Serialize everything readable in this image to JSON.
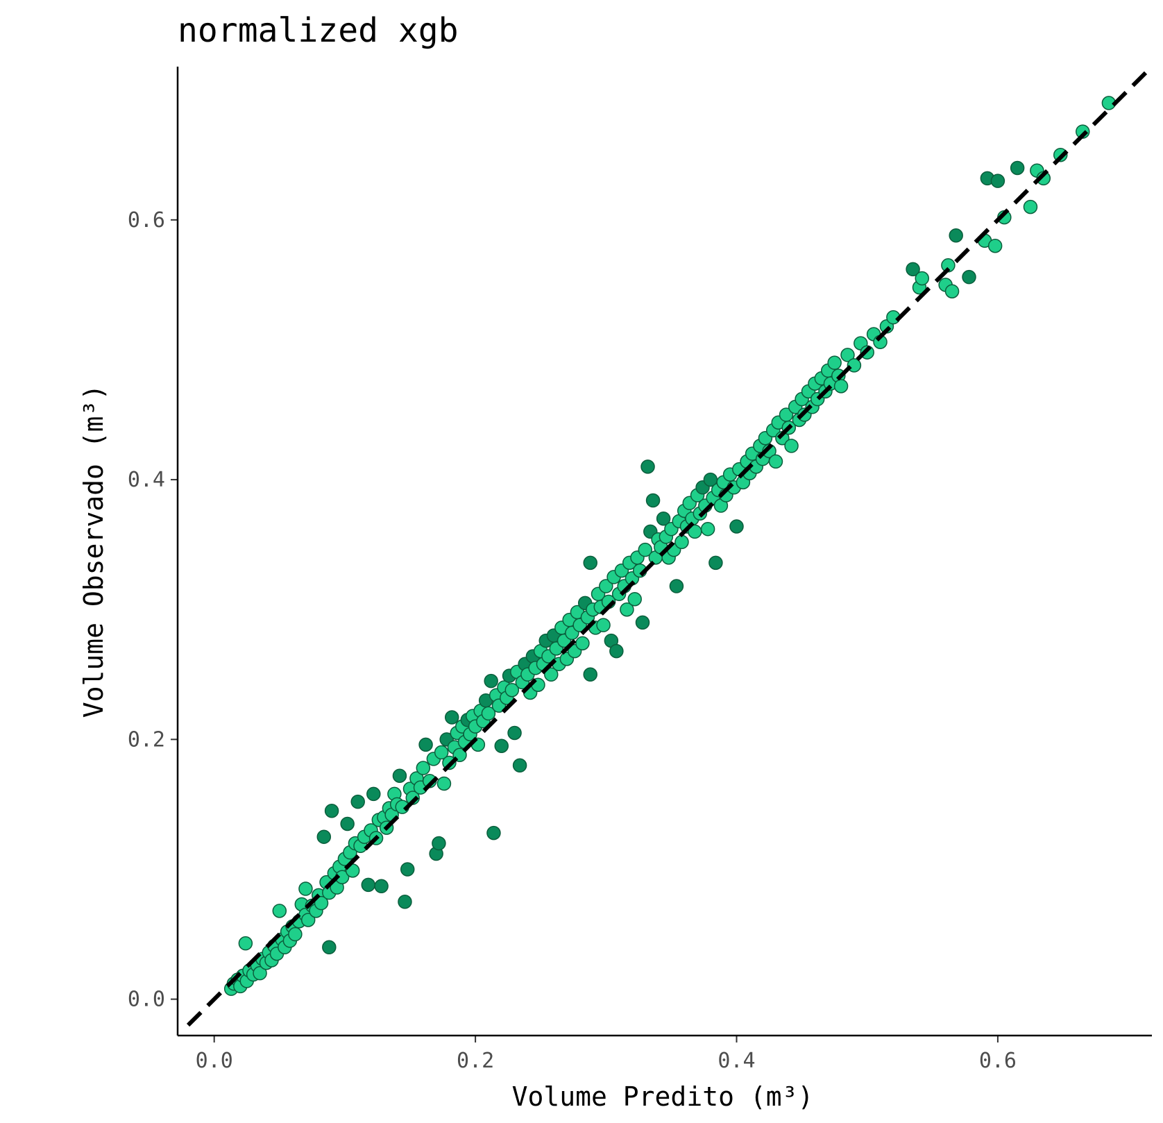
{
  "chart_data": {
    "type": "scatter",
    "title": "normalized xgb",
    "xlabel": "Volume Predito (m³)",
    "ylabel": "Volume Observado (m³)",
    "xlim": [
      -0.028,
      0.718
    ],
    "ylim": [
      -0.028,
      0.718
    ],
    "x_ticks": [
      0.0,
      0.2,
      0.4,
      0.6
    ],
    "y_ticks": [
      0.0,
      0.2,
      0.4,
      0.6
    ],
    "x_tick_labels": [
      "0.0",
      "0.2",
      "0.4",
      "0.6"
    ],
    "y_tick_labels": [
      "0.0",
      "0.2",
      "0.4",
      "0.6"
    ],
    "grid": false,
    "reference_line": {
      "slope": 1,
      "intercept": 0,
      "style": "dashed",
      "color": "#000000"
    },
    "point_fill": "#1fcf8a",
    "point_fill_dark": "#0a8a5a",
    "point_stroke": "#0b5e3c",
    "series": [
      {
        "points": [
          [
            0.013,
            0.008
          ],
          [
            0.015,
            0.012
          ],
          [
            0.018,
            0.015
          ],
          [
            0.02,
            0.01
          ],
          [
            0.022,
            0.018
          ],
          [
            0.025,
            0.014
          ],
          [
            0.027,
            0.022
          ],
          [
            0.03,
            0.019
          ],
          [
            0.024,
            0.043
          ],
          [
            0.033,
            0.026
          ],
          [
            0.035,
            0.02
          ],
          [
            0.037,
            0.031
          ],
          [
            0.04,
            0.028
          ],
          [
            0.042,
            0.036
          ],
          [
            0.044,
            0.03
          ],
          [
            0.046,
            0.041
          ],
          [
            0.048,
            0.035
          ],
          [
            0.05,
            0.068
          ],
          [
            0.052,
            0.046
          ],
          [
            0.054,
            0.04
          ],
          [
            0.056,
            0.052
          ],
          [
            0.058,
            0.045
          ],
          [
            0.06,
            0.056
          ],
          [
            0.062,
            0.05
          ],
          [
            0.065,
            0.06
          ],
          [
            0.067,
            0.073
          ],
          [
            0.07,
            0.065
          ],
          [
            0.072,
            0.061
          ],
          [
            0.07,
            0.085
          ],
          [
            0.075,
            0.072
          ],
          [
            0.078,
            0.068
          ],
          [
            0.08,
            0.08
          ],
          [
            0.082,
            0.074
          ],
          [
            0.084,
            0.125
          ],
          [
            0.086,
            0.09
          ],
          [
            0.088,
            0.082
          ],
          [
            0.088,
            0.04
          ],
          [
            0.09,
            0.145
          ],
          [
            0.092,
            0.097
          ],
          [
            0.094,
            0.086
          ],
          [
            0.096,
            0.102
          ],
          [
            0.098,
            0.094
          ],
          [
            0.1,
            0.108
          ],
          [
            0.102,
            0.135
          ],
          [
            0.104,
            0.113
          ],
          [
            0.106,
            0.099
          ],
          [
            0.108,
            0.12
          ],
          [
            0.11,
            0.152
          ],
          [
            0.112,
            0.118
          ],
          [
            0.115,
            0.125
          ],
          [
            0.118,
            0.088
          ],
          [
            0.12,
            0.13
          ],
          [
            0.122,
            0.158
          ],
          [
            0.124,
            0.124
          ],
          [
            0.126,
            0.138
          ],
          [
            0.128,
            0.087
          ],
          [
            0.13,
            0.14
          ],
          [
            0.132,
            0.132
          ],
          [
            0.134,
            0.147
          ],
          [
            0.136,
            0.142
          ],
          [
            0.138,
            0.158
          ],
          [
            0.14,
            0.15
          ],
          [
            0.142,
            0.172
          ],
          [
            0.144,
            0.148
          ],
          [
            0.146,
            0.075
          ],
          [
            0.148,
            0.1
          ],
          [
            0.15,
            0.162
          ],
          [
            0.152,
            0.155
          ],
          [
            0.155,
            0.17
          ],
          [
            0.158,
            0.163
          ],
          [
            0.16,
            0.178
          ],
          [
            0.162,
            0.196
          ],
          [
            0.165,
            0.168
          ],
          [
            0.168,
            0.185
          ],
          [
            0.17,
            0.112
          ],
          [
            0.172,
            0.12
          ],
          [
            0.174,
            0.19
          ],
          [
            0.176,
            0.166
          ],
          [
            0.178,
            0.2
          ],
          [
            0.18,
            0.182
          ],
          [
            0.182,
            0.217
          ],
          [
            0.184,
            0.194
          ],
          [
            0.186,
            0.205
          ],
          [
            0.188,
            0.188
          ],
          [
            0.19,
            0.21
          ],
          [
            0.192,
            0.198
          ],
          [
            0.194,
            0.215
          ],
          [
            0.196,
            0.204
          ],
          [
            0.198,
            0.218
          ],
          [
            0.2,
            0.21
          ],
          [
            0.202,
            0.196
          ],
          [
            0.204,
            0.222
          ],
          [
            0.206,
            0.214
          ],
          [
            0.208,
            0.23
          ],
          [
            0.21,
            0.22
          ],
          [
            0.212,
            0.245
          ],
          [
            0.214,
            0.128
          ],
          [
            0.216,
            0.234
          ],
          [
            0.218,
            0.226
          ],
          [
            0.22,
            0.195
          ],
          [
            0.222,
            0.24
          ],
          [
            0.224,
            0.232
          ],
          [
            0.226,
            0.249
          ],
          [
            0.228,
            0.238
          ],
          [
            0.23,
            0.205
          ],
          [
            0.232,
            0.252
          ],
          [
            0.234,
            0.18
          ],
          [
            0.236,
            0.244
          ],
          [
            0.238,
            0.258
          ],
          [
            0.24,
            0.25
          ],
          [
            0.242,
            0.236
          ],
          [
            0.244,
            0.264
          ],
          [
            0.246,
            0.255
          ],
          [
            0.248,
            0.242
          ],
          [
            0.25,
            0.268
          ],
          [
            0.252,
            0.258
          ],
          [
            0.254,
            0.276
          ],
          [
            0.256,
            0.264
          ],
          [
            0.258,
            0.25
          ],
          [
            0.26,
            0.28
          ],
          [
            0.262,
            0.27
          ],
          [
            0.264,
            0.258
          ],
          [
            0.266,
            0.286
          ],
          [
            0.268,
            0.276
          ],
          [
            0.27,
            0.262
          ],
          [
            0.272,
            0.292
          ],
          [
            0.274,
            0.282
          ],
          [
            0.276,
            0.268
          ],
          [
            0.278,
            0.298
          ],
          [
            0.28,
            0.288
          ],
          [
            0.282,
            0.274
          ],
          [
            0.284,
            0.305
          ],
          [
            0.286,
            0.294
          ],
          [
            0.288,
            0.25
          ],
          [
            0.288,
            0.336
          ],
          [
            0.29,
            0.3
          ],
          [
            0.292,
            0.286
          ],
          [
            0.294,
            0.312
          ],
          [
            0.296,
            0.302
          ],
          [
            0.298,
            0.288
          ],
          [
            0.3,
            0.318
          ],
          [
            0.302,
            0.306
          ],
          [
            0.304,
            0.276
          ],
          [
            0.306,
            0.325
          ],
          [
            0.308,
            0.268
          ],
          [
            0.31,
            0.312
          ],
          [
            0.312,
            0.33
          ],
          [
            0.314,
            0.318
          ],
          [
            0.316,
            0.3
          ],
          [
            0.318,
            0.336
          ],
          [
            0.32,
            0.324
          ],
          [
            0.322,
            0.308
          ],
          [
            0.324,
            0.34
          ],
          [
            0.326,
            0.33
          ],
          [
            0.328,
            0.29
          ],
          [
            0.33,
            0.346
          ],
          [
            0.332,
            0.41
          ],
          [
            0.334,
            0.36
          ],
          [
            0.336,
            0.384
          ],
          [
            0.338,
            0.34
          ],
          [
            0.34,
            0.354
          ],
          [
            0.342,
            0.348
          ],
          [
            0.344,
            0.37
          ],
          [
            0.346,
            0.356
          ],
          [
            0.348,
            0.34
          ],
          [
            0.35,
            0.362
          ],
          [
            0.352,
            0.346
          ],
          [
            0.354,
            0.318
          ],
          [
            0.356,
            0.368
          ],
          [
            0.358,
            0.352
          ],
          [
            0.36,
            0.376
          ],
          [
            0.362,
            0.364
          ],
          [
            0.364,
            0.382
          ],
          [
            0.366,
            0.37
          ],
          [
            0.368,
            0.36
          ],
          [
            0.37,
            0.388
          ],
          [
            0.372,
            0.374
          ],
          [
            0.374,
            0.394
          ],
          [
            0.376,
            0.38
          ],
          [
            0.378,
            0.362
          ],
          [
            0.38,
            0.4
          ],
          [
            0.382,
            0.386
          ],
          [
            0.384,
            0.336
          ],
          [
            0.386,
            0.392
          ],
          [
            0.388,
            0.38
          ],
          [
            0.39,
            0.398
          ],
          [
            0.392,
            0.388
          ],
          [
            0.395,
            0.404
          ],
          [
            0.398,
            0.394
          ],
          [
            0.4,
            0.364
          ],
          [
            0.402,
            0.408
          ],
          [
            0.405,
            0.398
          ],
          [
            0.408,
            0.414
          ],
          [
            0.41,
            0.405
          ],
          [
            0.412,
            0.42
          ],
          [
            0.415,
            0.41
          ],
          [
            0.418,
            0.426
          ],
          [
            0.42,
            0.416
          ],
          [
            0.422,
            0.432
          ],
          [
            0.425,
            0.422
          ],
          [
            0.428,
            0.438
          ],
          [
            0.43,
            0.414
          ],
          [
            0.432,
            0.444
          ],
          [
            0.435,
            0.432
          ],
          [
            0.438,
            0.45
          ],
          [
            0.44,
            0.44
          ],
          [
            0.442,
            0.426
          ],
          [
            0.445,
            0.456
          ],
          [
            0.448,
            0.446
          ],
          [
            0.45,
            0.462
          ],
          [
            0.452,
            0.45
          ],
          [
            0.455,
            0.468
          ],
          [
            0.458,
            0.456
          ],
          [
            0.46,
            0.474
          ],
          [
            0.462,
            0.462
          ],
          [
            0.465,
            0.478
          ],
          [
            0.468,
            0.468
          ],
          [
            0.47,
            0.484
          ],
          [
            0.472,
            0.474
          ],
          [
            0.475,
            0.49
          ],
          [
            0.478,
            0.48
          ],
          [
            0.48,
            0.472
          ],
          [
            0.485,
            0.496
          ],
          [
            0.49,
            0.488
          ],
          [
            0.495,
            0.505
          ],
          [
            0.5,
            0.498
          ],
          [
            0.505,
            0.512
          ],
          [
            0.51,
            0.506
          ],
          [
            0.515,
            0.518
          ],
          [
            0.52,
            0.525
          ],
          [
            0.535,
            0.562
          ],
          [
            0.54,
            0.548
          ],
          [
            0.542,
            0.555
          ],
          [
            0.56,
            0.55
          ],
          [
            0.562,
            0.565
          ],
          [
            0.565,
            0.545
          ],
          [
            0.568,
            0.588
          ],
          [
            0.578,
            0.556
          ],
          [
            0.59,
            0.584
          ],
          [
            0.592,
            0.632
          ],
          [
            0.598,
            0.58
          ],
          [
            0.6,
            0.63
          ],
          [
            0.605,
            0.602
          ],
          [
            0.615,
            0.64
          ],
          [
            0.625,
            0.61
          ],
          [
            0.63,
            0.638
          ],
          [
            0.635,
            0.632
          ],
          [
            0.648,
            0.65
          ],
          [
            0.665,
            0.668
          ],
          [
            0.685,
            0.69
          ]
        ]
      }
    ]
  }
}
